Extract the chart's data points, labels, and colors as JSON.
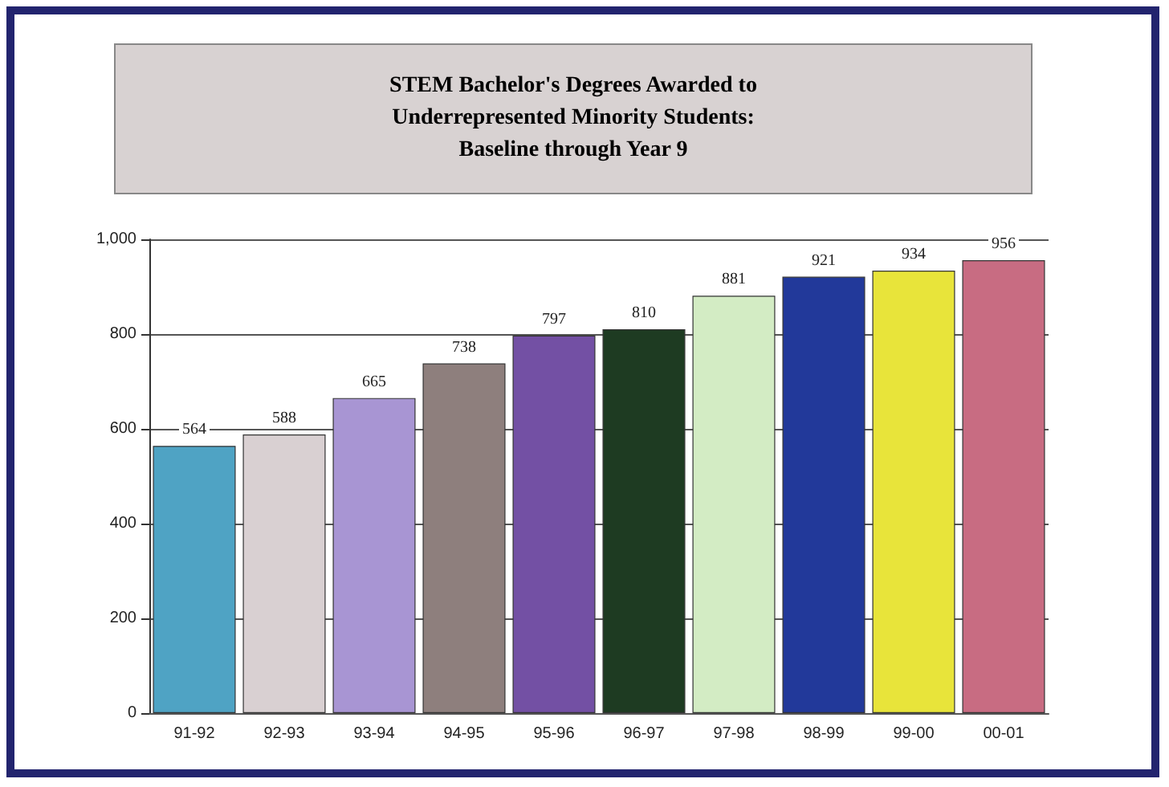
{
  "chart_data": {
    "type": "bar",
    "title": "STEM Bachelor's Degrees Awarded to\nUnderrepresented Minority Students:\nBaseline through Year 9",
    "categories": [
      "91-92",
      "92-93",
      "93-94",
      "94-95",
      "95-96",
      "96-97",
      "97-98",
      "98-99",
      "99-00",
      "00-01"
    ],
    "values": [
      564,
      588,
      665,
      738,
      797,
      810,
      881,
      921,
      934,
      956
    ],
    "colors": [
      "#4fa3c4",
      "#d9d0d2",
      "#a895d3",
      "#8e7f7d",
      "#7350a4",
      "#1e3b22",
      "#d3ecc4",
      "#22399a",
      "#e8e43a",
      "#c86c82"
    ],
    "data_labels": true,
    "ylim": [
      0,
      1000
    ],
    "yticks": [
      0,
      200,
      400,
      600,
      800,
      {
        "value": 1000,
        "label": "1,000"
      }
    ],
    "grid": "y"
  }
}
